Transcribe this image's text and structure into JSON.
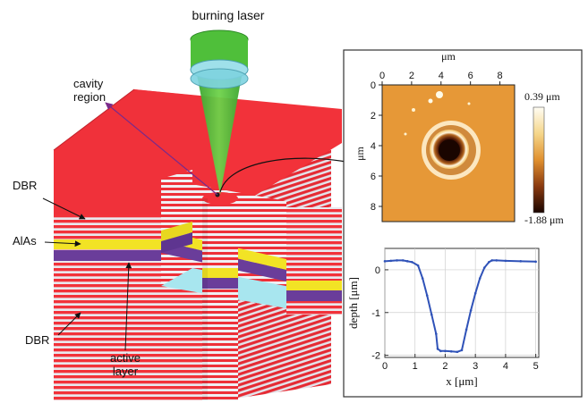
{
  "labels": {
    "burning_laser": "burning laser",
    "cavity_region": [
      "cavity",
      "region"
    ],
    "dbr_top": "DBR",
    "alas": "AlAs",
    "dbr_bottom": "DBR",
    "active_layer": [
      "active",
      "layer"
    ]
  },
  "afm_image": {
    "x_unit": "μm",
    "y_unit": "μm",
    "x_ticks": [
      "0",
      "2",
      "4",
      "6",
      "8"
    ],
    "y_ticks": [
      "0",
      "2",
      "4",
      "6",
      "8"
    ],
    "colorbar_max": "0.39 μm",
    "colorbar_min": "-1.88 μm"
  },
  "chart_data": {
    "type": "line",
    "xlabel": "x [μm]",
    "ylabel": "depth [μm]",
    "xlim": [
      0,
      5.1
    ],
    "ylim": [
      -2.05,
      0.5
    ],
    "x_ticks": [
      "0",
      "1",
      "2",
      "3",
      "4",
      "5"
    ],
    "y_ticks": [
      "0",
      "-1",
      "-2"
    ],
    "series": [
      {
        "color": "#2f52b8",
        "x": [
          0.0,
          0.2,
          0.4,
          0.6,
          0.75,
          0.9,
          1.1,
          1.25,
          1.4,
          1.55,
          1.7,
          1.75,
          1.85,
          2.0,
          2.2,
          2.4,
          2.55,
          2.7,
          2.85,
          3.0,
          3.15,
          3.3,
          3.45,
          3.55,
          3.7,
          4.0,
          4.5,
          5.0
        ],
        "y": [
          0.2,
          0.21,
          0.22,
          0.22,
          0.2,
          0.18,
          0.1,
          -0.2,
          -0.6,
          -1.05,
          -1.5,
          -1.85,
          -1.9,
          -1.9,
          -1.91,
          -1.92,
          -1.88,
          -1.4,
          -0.95,
          -0.55,
          -0.2,
          0.05,
          0.18,
          0.22,
          0.22,
          0.21,
          0.2,
          0.19
        ]
      }
    ]
  },
  "colors": {
    "red_layer": "#f2323a",
    "white_stripe": "#e8e8ee",
    "alas_yellow": "#f2e325",
    "active_purple": "#6a3d9a",
    "cavity_cyan": "#a8e6ef",
    "laser_green": "#4fbf3a",
    "plot_line": "#2f52b8"
  }
}
